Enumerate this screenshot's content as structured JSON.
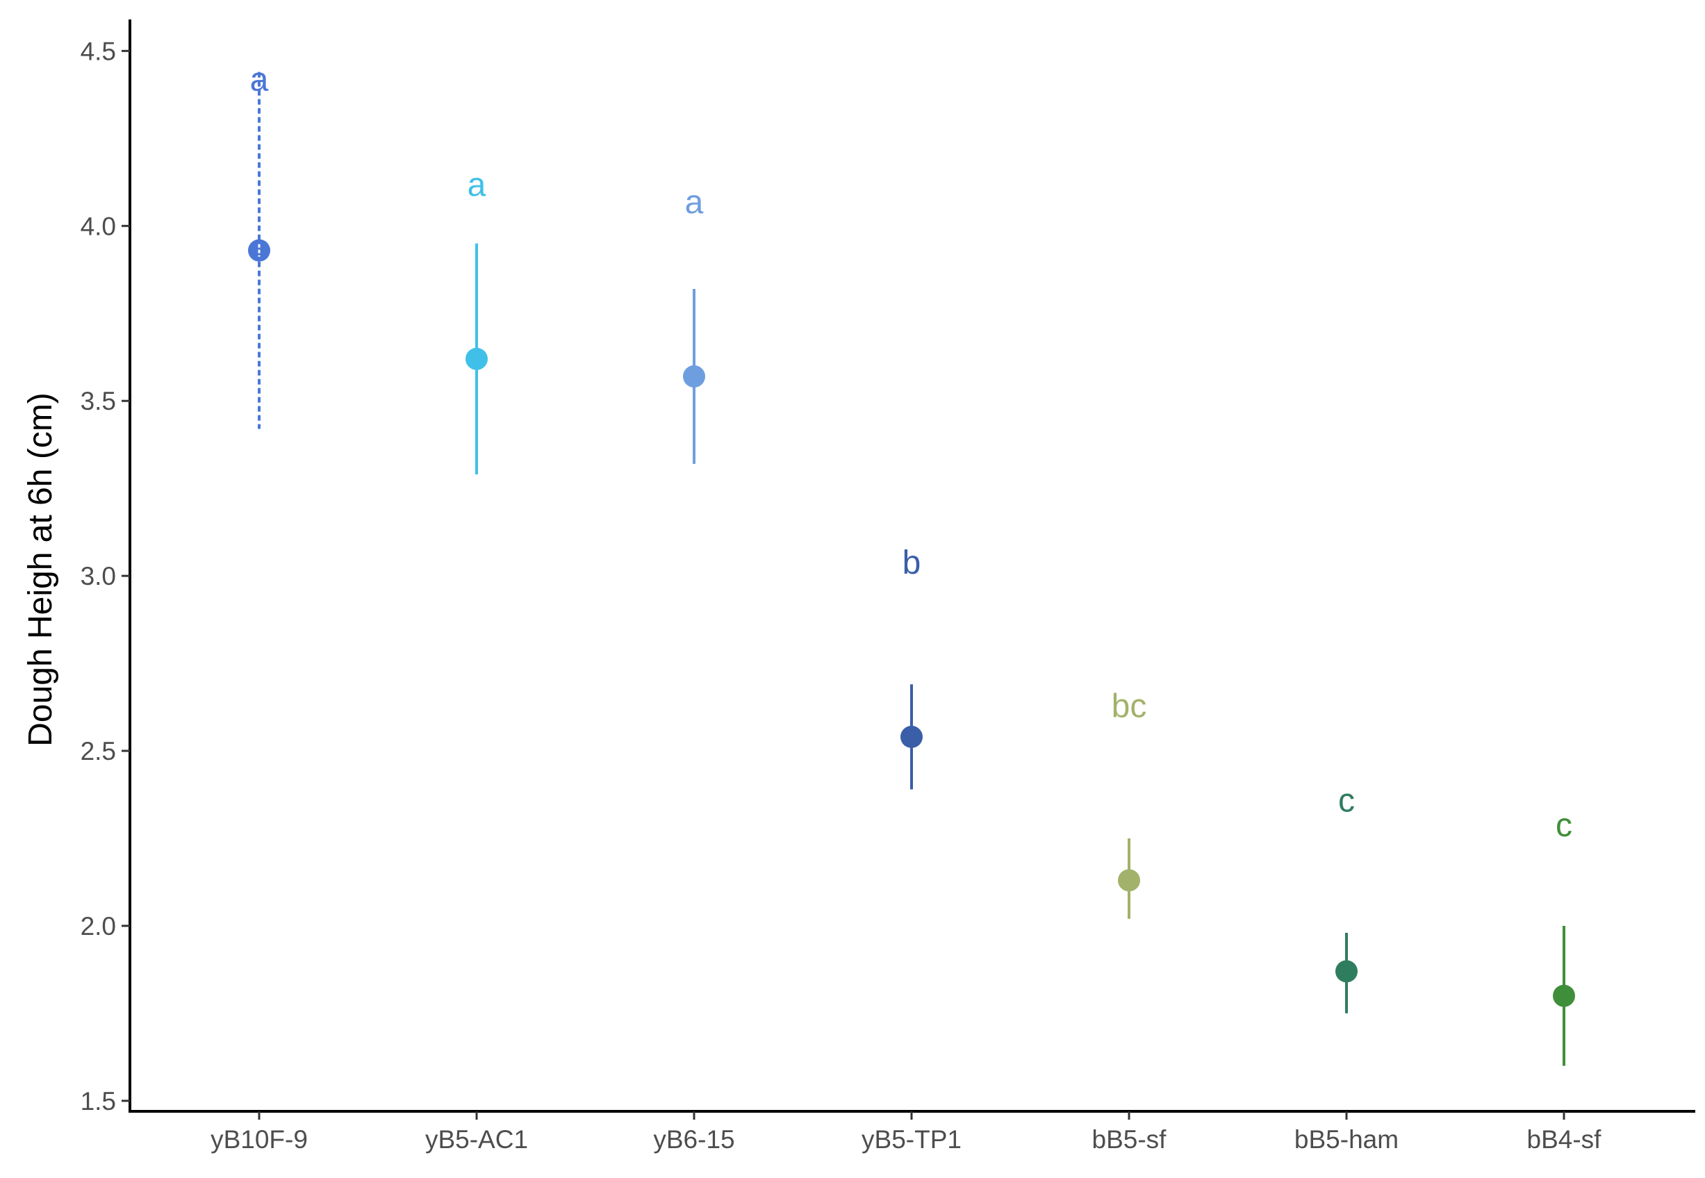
{
  "chart_data": {
    "type": "scatter",
    "title": "",
    "xlabel": "",
    "ylabel": "Dough Heigh at 6h (cm)",
    "ylim": [
      1.47,
      4.59
    ],
    "yticks": [
      1.5,
      2.0,
      2.5,
      3.0,
      3.5,
      4.0,
      4.5
    ],
    "ytick_labels": [
      "1.5",
      "2.0",
      "2.5",
      "3.0",
      "3.5",
      "4.0",
      "4.5"
    ],
    "grid": false,
    "legend": "none",
    "categories": [
      "yB10F-9",
      "yB5-AC1",
      "yB6-15",
      "yB5-TP1",
      "bB5-sf",
      "bB5-ham",
      "bB4-sf"
    ],
    "points": [
      {
        "category": "yB10F-9",
        "mean": 3.93,
        "lower": 3.42,
        "upper": 4.44,
        "group": "a",
        "label_y": 4.42,
        "color": "#4a76d6",
        "dashed": true
      },
      {
        "category": "yB5-AC1",
        "mean": 3.62,
        "lower": 3.29,
        "upper": 3.95,
        "group": "a",
        "label_y": 4.12,
        "color": "#40c0e8",
        "dashed": false
      },
      {
        "category": "yB6-15",
        "mean": 3.57,
        "lower": 3.32,
        "upper": 3.82,
        "group": "a",
        "label_y": 4.07,
        "color": "#6f9ee0",
        "dashed": false
      },
      {
        "category": "yB5-TP1",
        "mean": 2.54,
        "lower": 2.39,
        "upper": 2.69,
        "group": "b",
        "label_y": 3.04,
        "color": "#3a5ea8",
        "dashed": false
      },
      {
        "category": "bB5-sf",
        "mean": 2.13,
        "lower": 2.02,
        "upper": 2.25,
        "group": "bc",
        "label_y": 2.63,
        "color": "#a2b26a",
        "dashed": false
      },
      {
        "category": "bB5-ham",
        "mean": 1.87,
        "lower": 1.75,
        "upper": 1.98,
        "group": "c",
        "label_y": 2.36,
        "color": "#2f7d5f",
        "dashed": false
      },
      {
        "category": "bB4-sf",
        "mean": 1.8,
        "lower": 1.6,
        "upper": 2.0,
        "group": "c",
        "label_y": 2.29,
        "color": "#3f8f3a",
        "dashed": false
      }
    ]
  }
}
